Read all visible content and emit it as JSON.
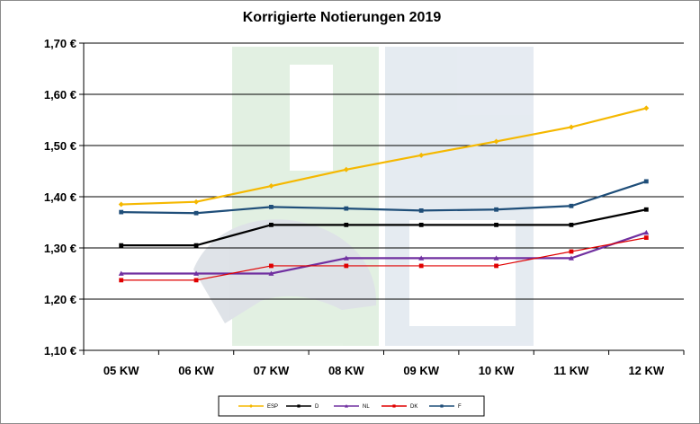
{
  "chart_data": {
    "type": "line",
    "title": "Korrigierte Notierungen 2019",
    "categories": [
      "05 KW",
      "06 KW",
      "07 KW",
      "08 KW",
      "09 KW",
      "10 KW",
      "11 KW",
      "12 KW"
    ],
    "ylim": [
      1.1,
      1.7
    ],
    "yticks": [
      "1,10 €",
      "1,20 €",
      "1,30 €",
      "1,40 €",
      "1,50 €",
      "1,60 €",
      "1,70 €"
    ],
    "grid": true,
    "legend_position": "bottom",
    "series": [
      {
        "name": "ESP",
        "color": "#F5B800",
        "marker": "diamond",
        "values": [
          1.385,
          1.39,
          1.421,
          1.453,
          1.481,
          1.508,
          1.536,
          1.573
        ]
      },
      {
        "name": "D",
        "color": "#000000",
        "marker": "square",
        "values": [
          1.305,
          1.305,
          1.345,
          1.345,
          1.345,
          1.345,
          1.345,
          1.375
        ]
      },
      {
        "name": "NL",
        "color": "#7030A0",
        "marker": "triangle",
        "values": [
          1.25,
          1.25,
          1.25,
          1.28,
          1.28,
          1.28,
          1.28,
          1.33
        ]
      },
      {
        "name": "DK",
        "color": "#E00000",
        "marker": "square",
        "values": [
          1.237,
          1.237,
          1.265,
          1.265,
          1.265,
          1.265,
          1.293,
          1.32
        ]
      },
      {
        "name": "F",
        "color": "#1F4E79",
        "marker": "square",
        "values": [
          1.37,
          1.368,
          1.38,
          1.377,
          1.373,
          1.375,
          1.382,
          1.43
        ]
      }
    ]
  }
}
